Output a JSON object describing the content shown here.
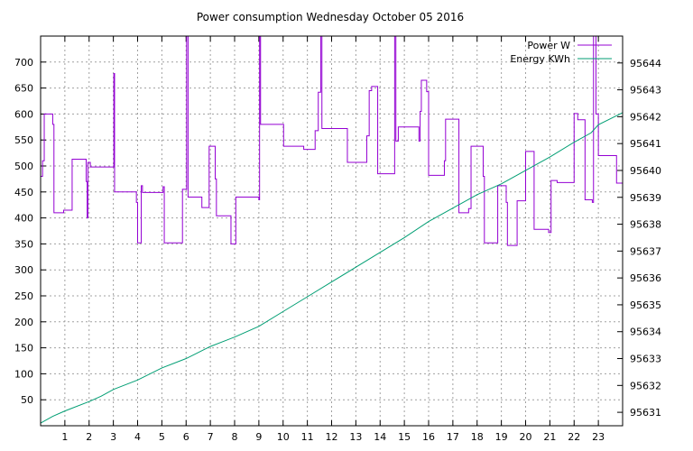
{
  "chart_data": {
    "type": "line",
    "title": "Power consumption Wednesday October 05 2016",
    "xlabel": "",
    "ylabel": "",
    "xlim": [
      0,
      24
    ],
    "ylim": [
      0,
      750
    ],
    "y2lim": [
      95630.5,
      95645
    ],
    "grid": true,
    "legend_position": "top-right",
    "x_ticks": [
      1,
      2,
      3,
      4,
      5,
      6,
      7,
      8,
      9,
      10,
      11,
      12,
      13,
      14,
      15,
      16,
      17,
      18,
      19,
      20,
      21,
      22,
      23
    ],
    "y_ticks": [
      50,
      100,
      150,
      200,
      250,
      300,
      350,
      400,
      450,
      500,
      550,
      600,
      650,
      700
    ],
    "y2_ticks": [
      95631,
      95632,
      95633,
      95634,
      95635,
      95636,
      95637,
      95638,
      95639,
      95640,
      95641,
      95642,
      95643,
      95644
    ],
    "series": [
      {
        "name": "Power W",
        "axis": "left",
        "color": "#9400d3",
        "step": true,
        "points": [
          [
            0,
            480
          ],
          [
            0.08,
            510
          ],
          [
            0.15,
            600
          ],
          [
            0.5,
            580
          ],
          [
            0.55,
            410
          ],
          [
            0.9,
            410
          ],
          [
            0.95,
            415
          ],
          [
            1.3,
            513
          ],
          [
            1.85,
            513
          ],
          [
            1.88,
            470
          ],
          [
            1.92,
            400
          ],
          [
            1.95,
            507
          ],
          [
            2.05,
            498
          ],
          [
            2.5,
            498
          ],
          [
            3.0,
            498
          ],
          [
            3.02,
            678
          ],
          [
            3.05,
            450
          ],
          [
            3.9,
            450
          ],
          [
            3.95,
            430
          ],
          [
            4.0,
            352
          ],
          [
            4.12,
            352
          ],
          [
            4.15,
            462
          ],
          [
            4.2,
            449
          ],
          [
            5.0,
            449
          ],
          [
            5.05,
            460
          ],
          [
            5.1,
            352
          ],
          [
            5.8,
            352
          ],
          [
            5.85,
            455
          ],
          [
            6.0,
            455
          ],
          [
            6.02,
            750
          ],
          [
            6.08,
            440
          ],
          [
            6.6,
            440
          ],
          [
            6.65,
            420
          ],
          [
            6.9,
            420
          ],
          [
            6.95,
            538
          ],
          [
            7.15,
            538
          ],
          [
            7.2,
            475
          ],
          [
            7.25,
            404
          ],
          [
            7.8,
            404
          ],
          [
            7.85,
            350
          ],
          [
            8.0,
            350
          ],
          [
            8.05,
            440
          ],
          [
            8.95,
            440
          ],
          [
            9.0,
            435
          ],
          [
            9.03,
            750
          ],
          [
            9.07,
            580
          ],
          [
            10.0,
            580
          ],
          [
            10.02,
            538
          ],
          [
            10.8,
            538
          ],
          [
            10.85,
            532
          ],
          [
            11.3,
            532
          ],
          [
            11.32,
            568
          ],
          [
            11.45,
            642
          ],
          [
            11.55,
            750
          ],
          [
            11.6,
            572
          ],
          [
            12.6,
            572
          ],
          [
            12.65,
            507
          ],
          [
            13.4,
            507
          ],
          [
            13.45,
            558
          ],
          [
            13.55,
            645
          ],
          [
            13.65,
            653
          ],
          [
            13.85,
            653
          ],
          [
            13.9,
            485
          ],
          [
            14.55,
            485
          ],
          [
            14.6,
            750
          ],
          [
            14.65,
            548
          ],
          [
            14.75,
            575
          ],
          [
            15.55,
            575
          ],
          [
            15.6,
            548
          ],
          [
            15.65,
            605
          ],
          [
            15.7,
            665
          ],
          [
            15.85,
            665
          ],
          [
            15.92,
            643
          ],
          [
            16.0,
            482
          ],
          [
            16.6,
            482
          ],
          [
            16.65,
            510
          ],
          [
            16.7,
            590
          ],
          [
            17.2,
            590
          ],
          [
            17.25,
            410
          ],
          [
            17.6,
            410
          ],
          [
            17.65,
            418
          ],
          [
            17.75,
            538
          ],
          [
            18.2,
            538
          ],
          [
            18.25,
            480
          ],
          [
            18.3,
            352
          ],
          [
            18.8,
            352
          ],
          [
            18.85,
            462
          ],
          [
            19.15,
            462
          ],
          [
            19.2,
            430
          ],
          [
            19.25,
            347
          ],
          [
            19.6,
            347
          ],
          [
            19.65,
            433
          ],
          [
            19.95,
            433
          ],
          [
            20.0,
            528
          ],
          [
            20.3,
            528
          ],
          [
            20.35,
            378
          ],
          [
            20.9,
            378
          ],
          [
            20.95,
            372
          ],
          [
            21.05,
            472
          ],
          [
            21.2,
            472
          ],
          [
            21.3,
            468
          ],
          [
            21.95,
            468
          ],
          [
            22.0,
            601
          ],
          [
            22.15,
            589
          ],
          [
            22.4,
            589
          ],
          [
            22.45,
            435
          ],
          [
            22.7,
            435
          ],
          [
            22.75,
            430
          ],
          [
            22.8,
            750
          ],
          [
            22.9,
            600
          ],
          [
            23.0,
            520
          ],
          [
            23.7,
            520
          ],
          [
            23.75,
            467
          ],
          [
            24.0,
            467
          ],
          [
            24.0,
            480
          ]
        ]
      },
      {
        "name": "Energy KWh",
        "axis": "right",
        "color": "#009e73",
        "step": false,
        "points": [
          [
            0,
            95630.6
          ],
          [
            0.5,
            95630.85
          ],
          [
            1,
            95631.05
          ],
          [
            2,
            95631.4
          ],
          [
            2.5,
            95631.6
          ],
          [
            3,
            95631.85
          ],
          [
            4,
            95632.2
          ],
          [
            5,
            95632.65
          ],
          [
            6,
            95633.0
          ],
          [
            7,
            95633.45
          ],
          [
            8,
            95633.8
          ],
          [
            9,
            95634.2
          ],
          [
            10,
            95634.75
          ],
          [
            11,
            95635.3
          ],
          [
            12,
            95635.85
          ],
          [
            13,
            95636.4
          ],
          [
            14,
            95636.95
          ],
          [
            15,
            95637.5
          ],
          [
            16,
            95638.1
          ],
          [
            17,
            95638.6
          ],
          [
            18,
            95639.1
          ],
          [
            19,
            95639.5
          ],
          [
            20,
            95640.0
          ],
          [
            21,
            95640.5
          ],
          [
            22,
            95641.05
          ],
          [
            22.7,
            95641.4
          ],
          [
            23,
            95641.7
          ],
          [
            24,
            95642.15
          ]
        ]
      }
    ]
  }
}
